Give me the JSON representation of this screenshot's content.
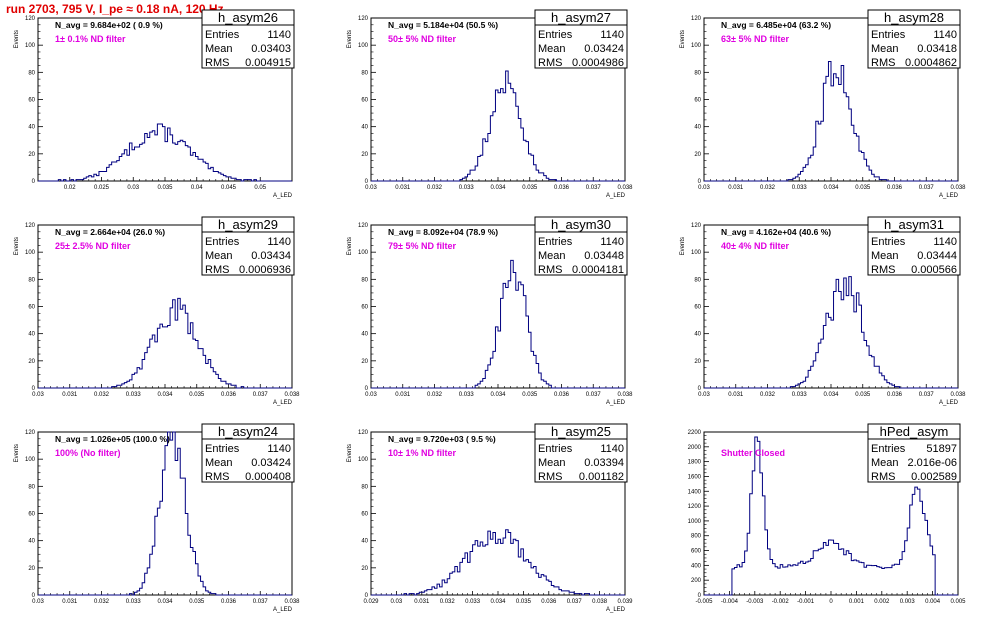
{
  "title": "run 2703,   795 V, I_pe ≈ 0.18 nA, 120 Hz",
  "chart_data": [
    {
      "type": "bar",
      "name": "h_asym26",
      "navg": "N_avg = 9.684e+02 ( 0.9 %)",
      "filter": "1± 0.1% ND filter",
      "stats": {
        "entries": "1140",
        "mean": "0.03403",
        "rms": "0.004915"
      },
      "stat_labels": {
        "entries": "Entries",
        "mean": "Mean",
        "rms": "RMS"
      },
      "ylabel": "Events",
      "xlabel": "A_LED",
      "xlim": [
        0.015,
        0.055
      ],
      "ylim": [
        0,
        120
      ],
      "x_ticks": [
        0.02,
        0.025,
        0.03,
        0.035,
        0.04,
        0.045,
        0.05
      ],
      "x_tick_labels": [
        "0.02",
        "0.025",
        "0.03",
        "0.035",
        "0.04",
        "0.045",
        "0.05"
      ],
      "y_ticks": [
        0,
        20,
        40,
        60,
        80,
        100,
        120
      ],
      "y_tick_labels": [
        "0",
        "20",
        "40",
        "60",
        "80",
        "100",
        "120"
      ],
      "mean": 0.03403,
      "sigma": 0.004915,
      "peak": 36
    },
    {
      "type": "bar",
      "name": "h_asym27",
      "navg": "N_avg = 5.184e+04 (50.5 %)",
      "filter": "50± 5% ND filter",
      "stats": {
        "entries": "1140",
        "mean": "0.03424",
        "rms": "0.0004986"
      },
      "stat_labels": {
        "entries": "Entries",
        "mean": "Mean",
        "rms": "RMS"
      },
      "ylabel": "Events",
      "xlabel": "A_LED",
      "xlim": [
        0.03,
        0.038
      ],
      "ylim": [
        0,
        120
      ],
      "x_ticks": [
        0.03,
        0.031,
        0.032,
        0.033,
        0.034,
        0.035,
        0.036,
        0.037,
        0.038
      ],
      "x_tick_labels": [
        "0.03",
        "0.031",
        "0.032",
        "0.033",
        "0.034",
        "0.035",
        "0.036",
        "0.037",
        "0.038"
      ],
      "y_ticks": [
        0,
        20,
        40,
        60,
        80,
        100,
        120
      ],
      "y_tick_labels": [
        "0",
        "20",
        "40",
        "60",
        "80",
        "100",
        "120"
      ],
      "mean": 0.03424,
      "sigma": 0.0004986,
      "peak": 72
    },
    {
      "type": "bar",
      "name": "h_asym28",
      "navg": "N_avg = 6.485e+04 (63.2 %)",
      "filter": "63± 5% ND filter",
      "stats": {
        "entries": "1140",
        "mean": "0.03418",
        "rms": "0.0004862"
      },
      "stat_labels": {
        "entries": "Entries",
        "mean": "Mean",
        "rms": "RMS"
      },
      "ylabel": "Events",
      "xlabel": "A_LED",
      "xlim": [
        0.03,
        0.038
      ],
      "ylim": [
        0,
        120
      ],
      "x_ticks": [
        0.03,
        0.031,
        0.032,
        0.033,
        0.034,
        0.035,
        0.036,
        0.037,
        0.038
      ],
      "x_tick_labels": [
        "0.03",
        "0.031",
        "0.032",
        "0.033",
        "0.034",
        "0.035",
        "0.036",
        "0.037",
        "0.038"
      ],
      "y_ticks": [
        0,
        20,
        40,
        60,
        80,
        100,
        120
      ],
      "y_tick_labels": [
        "0",
        "20",
        "40",
        "60",
        "80",
        "100",
        "120"
      ],
      "mean": 0.03418,
      "sigma": 0.0004862,
      "peak": 84
    },
    {
      "type": "bar",
      "name": "h_asym29",
      "navg": "N_avg = 2.664e+04 (26.0 %)",
      "filter": "25± 2.5% ND filter",
      "stats": {
        "entries": "1140",
        "mean": "0.03434",
        "rms": "0.0006936"
      },
      "stat_labels": {
        "entries": "Entries",
        "mean": "Mean",
        "rms": "RMS"
      },
      "ylabel": "Events",
      "xlabel": "A_LED",
      "xlim": [
        0.03,
        0.038
      ],
      "ylim": [
        0,
        120
      ],
      "x_ticks": [
        0.03,
        0.031,
        0.032,
        0.033,
        0.034,
        0.035,
        0.036,
        0.037,
        0.038
      ],
      "x_tick_labels": [
        "0.03",
        "0.031",
        "0.032",
        "0.033",
        "0.034",
        "0.035",
        "0.036",
        "0.037",
        "0.038"
      ],
      "y_ticks": [
        0,
        20,
        40,
        60,
        80,
        100,
        120
      ],
      "y_tick_labels": [
        "0",
        "20",
        "40",
        "60",
        "80",
        "100",
        "120"
      ],
      "mean": 0.03434,
      "sigma": 0.0006936,
      "peak": 58
    },
    {
      "type": "bar",
      "name": "h_asym30",
      "navg": "N_avg = 8.092e+04 (78.9 %)",
      "filter": "79± 5% ND filter",
      "stats": {
        "entries": "1140",
        "mean": "0.03448",
        "rms": "0.0004181"
      },
      "stat_labels": {
        "entries": "Entries",
        "mean": "Mean",
        "rms": "RMS"
      },
      "ylabel": "Events",
      "xlabel": "A_LED",
      "xlim": [
        0.03,
        0.038
      ],
      "ylim": [
        0,
        120
      ],
      "x_ticks": [
        0.03,
        0.031,
        0.032,
        0.033,
        0.034,
        0.035,
        0.036,
        0.037,
        0.038
      ],
      "x_tick_labels": [
        "0.03",
        "0.031",
        "0.032",
        "0.033",
        "0.034",
        "0.035",
        "0.036",
        "0.037",
        "0.038"
      ],
      "y_ticks": [
        0,
        20,
        40,
        60,
        80,
        100,
        120
      ],
      "y_tick_labels": [
        "0",
        "20",
        "40",
        "60",
        "80",
        "100",
        "120"
      ],
      "mean": 0.03448,
      "sigma": 0.0004181,
      "peak": 84
    },
    {
      "type": "bar",
      "name": "h_asym31",
      "navg": "N_avg = 4.162e+04 (40.6 %)",
      "filter": "40± 4% ND filter",
      "stats": {
        "entries": "1140",
        "mean": "0.03444",
        "rms": "0.000566"
      },
      "stat_labels": {
        "entries": "Entries",
        "mean": "Mean",
        "rms": "RMS"
      },
      "ylabel": "Events",
      "xlabel": "A_LED",
      "xlim": [
        0.03,
        0.038
      ],
      "ylim": [
        0,
        120
      ],
      "x_ticks": [
        0.03,
        0.031,
        0.032,
        0.033,
        0.034,
        0.035,
        0.036,
        0.037,
        0.038
      ],
      "x_tick_labels": [
        "0.03",
        "0.031",
        "0.032",
        "0.033",
        "0.034",
        "0.035",
        "0.036",
        "0.037",
        "0.038"
      ],
      "y_ticks": [
        0,
        20,
        40,
        60,
        80,
        100,
        120
      ],
      "y_tick_labels": [
        "0",
        "20",
        "40",
        "60",
        "80",
        "100",
        "120"
      ],
      "mean": 0.03444,
      "sigma": 0.000566,
      "peak": 78
    },
    {
      "type": "bar",
      "name": "h_asym24",
      "navg": "N_avg = 1.026e+05 (100.0 %)",
      "filter": "100% (No filter)",
      "stats": {
        "entries": "1140",
        "mean": "0.03424",
        "rms": "0.000408"
      },
      "stat_labels": {
        "entries": "Entries",
        "mean": "Mean",
        "rms": "RMS"
      },
      "ylabel": "Events",
      "xlabel": "A_LED",
      "xlim": [
        0.03,
        0.038
      ],
      "ylim": [
        0,
        120
      ],
      "x_ticks": [
        0.03,
        0.031,
        0.032,
        0.033,
        0.034,
        0.035,
        0.036,
        0.037,
        0.038
      ],
      "x_tick_labels": [
        "0.03",
        "0.031",
        "0.032",
        "0.033",
        "0.034",
        "0.035",
        "0.036",
        "0.037",
        "0.038"
      ],
      "y_ticks": [
        0,
        20,
        40,
        60,
        80,
        100,
        120
      ],
      "y_tick_labels": [
        "0",
        "20",
        "40",
        "60",
        "80",
        "100",
        "120"
      ],
      "mean": 0.03424,
      "sigma": 0.000408,
      "peak": 114
    },
    {
      "type": "bar",
      "name": "h_asym25",
      "navg": "N_avg = 9.720e+03 ( 9.5 %)",
      "filter": "10± 1% ND filter",
      "stats": {
        "entries": "1140",
        "mean": "0.03394",
        "rms": "0.001182"
      },
      "stat_labels": {
        "entries": "Entries",
        "mean": "Mean",
        "rms": "RMS"
      },
      "ylabel": "Events",
      "xlabel": "A_LED",
      "xlim": [
        0.029,
        0.039
      ],
      "ylim": [
        0,
        120
      ],
      "x_ticks": [
        0.029,
        0.03,
        0.031,
        0.032,
        0.033,
        0.034,
        0.035,
        0.036,
        0.037,
        0.038,
        0.039
      ],
      "x_tick_labels": [
        "0.029",
        "0.03",
        "0.031",
        "0.032",
        "0.033",
        "0.034",
        "0.035",
        "0.036",
        "0.037",
        "0.038",
        "0.039"
      ],
      "y_ticks": [
        0,
        20,
        40,
        60,
        80,
        100,
        120
      ],
      "y_tick_labels": [
        "0",
        "20",
        "40",
        "60",
        "80",
        "100",
        "120"
      ],
      "mean": 0.03394,
      "sigma": 0.001182,
      "peak": 44
    },
    {
      "type": "bar",
      "name": "hPed_asym",
      "navg": "",
      "filter": "Shutter Closed",
      "stats": {
        "entries": "51897",
        "mean": "2.016e-06",
        "rms": "0.002589"
      },
      "stat_labels": {
        "entries": "Entries",
        "mean": "Mean",
        "rms": "RMS"
      },
      "ylabel": "",
      "xlabel": "",
      "xlim": [
        -0.005,
        0.005
      ],
      "ylim": [
        0,
        2200
      ],
      "x_ticks": [
        -0.005,
        -0.004,
        -0.003,
        -0.002,
        -0.001,
        0,
        0.001,
        0.002,
        0.003,
        0.004,
        0.005
      ],
      "x_tick_labels": [
        "-0.005",
        "-0.004",
        "-0.003",
        "-0.002",
        "-0.001",
        "0",
        "0.001",
        "0.002",
        "0.003",
        "0.004",
        "0.005"
      ],
      "y_ticks": [
        0,
        200,
        400,
        600,
        800,
        1000,
        1200,
        1400,
        1600,
        1800,
        2000,
        2200
      ],
      "y_tick_labels": [
        "0",
        "200",
        "400",
        "600",
        "800",
        "1000",
        "1200",
        "1400",
        "1600",
        "1800",
        "2000",
        "2200"
      ],
      "ped": true
    }
  ]
}
